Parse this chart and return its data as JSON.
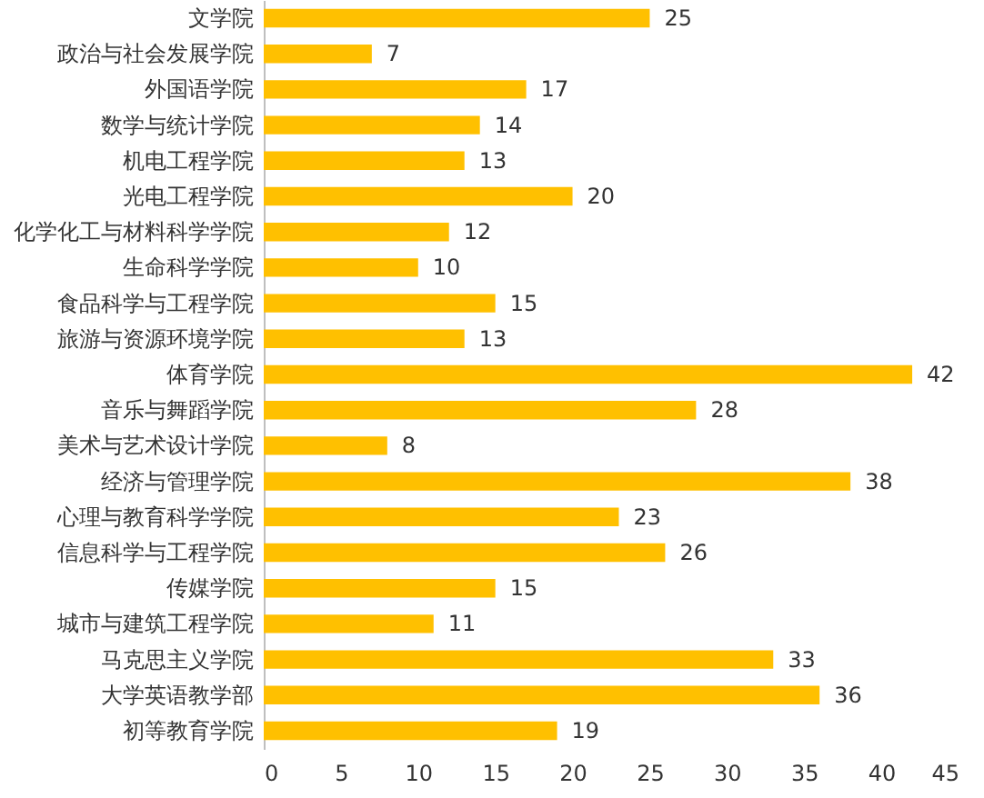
{
  "chart_data": {
    "type": "bar",
    "orientation": "horizontal",
    "categories": [
      "文学院",
      "政治与社会发展学院",
      "外国语学院",
      "数学与统计学院",
      "机电工程学院",
      "光电工程学院",
      "化学化工与材料科学学院",
      "生命科学学院",
      "食品科学与工程学院",
      "旅游与资源环境学院",
      "体育学院",
      "音乐与舞蹈学院",
      "美术与艺术设计学院",
      "经济与管理学院",
      "心理与教育科学学院",
      "信息科学与工程学院",
      "传媒学院",
      "城市与建筑工程学院",
      "马克思主义学院",
      "大学英语教学部",
      "初等教育学院"
    ],
    "values": [
      25,
      7,
      17,
      14,
      13,
      20,
      12,
      10,
      15,
      13,
      42,
      28,
      8,
      38,
      23,
      26,
      15,
      11,
      33,
      36,
      19
    ],
    "color": "#ffc000",
    "data_labels": true,
    "xlim": [
      0,
      45
    ],
    "xticks": [
      0,
      5,
      10,
      15,
      20,
      25,
      30,
      35,
      40,
      45
    ],
    "grid": false
  }
}
